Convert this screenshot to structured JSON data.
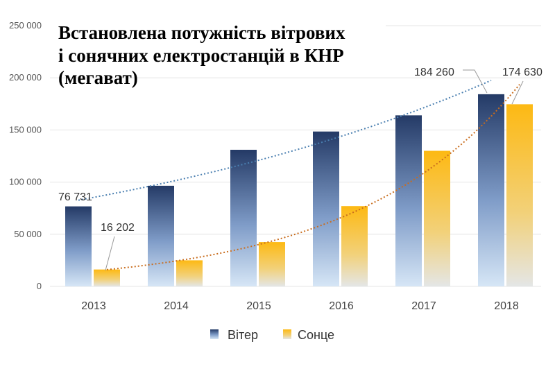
{
  "chart_data": {
    "type": "bar",
    "title_lines": [
      "Встановлена потужність вітрових",
      "і сонячних електростанцій в КНР",
      "(мегават)"
    ],
    "categories": [
      "2013",
      "2014",
      "2015",
      "2016",
      "2017",
      "2018"
    ],
    "series": [
      {
        "name": "Вітер",
        "values": [
          76731,
          96500,
          131000,
          148500,
          164000,
          184260
        ],
        "color": "#2b3f6b"
      },
      {
        "name": "Сонце",
        "values": [
          16202,
          25000,
          42500,
          77000,
          130000,
          174630
        ],
        "color": "#fdb913"
      }
    ],
    "data_labels": [
      {
        "series": 0,
        "index": 0,
        "text": "76 731"
      },
      {
        "series": 1,
        "index": 0,
        "text": "16 202"
      },
      {
        "series": 0,
        "index": 5,
        "text": "184 260"
      },
      {
        "series": 1,
        "index": 5,
        "text": "174 630"
      }
    ],
    "ylim": [
      0,
      250000
    ],
    "yticks": [
      {
        "value": 0,
        "label": "0"
      },
      {
        "value": 50000,
        "label": "50 000"
      },
      {
        "value": 100000,
        "label": "100 000"
      },
      {
        "value": 150000,
        "label": "150 000"
      },
      {
        "value": 200000,
        "label": "200 000"
      },
      {
        "value": 250000,
        "label": "250 000"
      }
    ],
    "trendlines": true,
    "grid": true,
    "legend_position": "bottom"
  }
}
